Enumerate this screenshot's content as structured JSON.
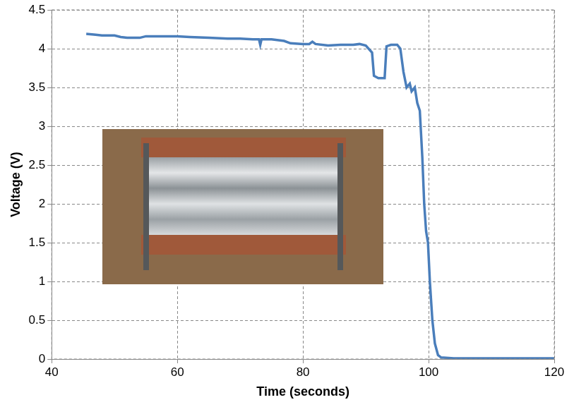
{
  "chart_data": {
    "type": "line",
    "x_label": "Time (seconds)",
    "y_label": "Voltage (V)",
    "color": "#4a7ebb",
    "grid": true,
    "xlim": [
      40,
      120
    ],
    "xticks": [
      40,
      60,
      80,
      100,
      120
    ],
    "ylim": [
      0,
      4.5
    ],
    "yticks": [
      0,
      0.5,
      1,
      1.5,
      2,
      2.5,
      3,
      3.5,
      4,
      4.5
    ],
    "x": [
      45.5,
      47,
      48,
      50,
      51,
      52,
      54,
      55,
      58,
      60,
      62,
      65,
      68,
      70,
      72,
      73,
      73.2,
      73.4,
      75,
      77,
      78,
      80,
      81,
      81.5,
      82,
      84,
      86,
      88,
      89,
      90,
      91,
      91.3,
      92,
      93,
      93.3,
      94,
      95,
      95.5,
      96,
      96.5,
      97,
      97.3,
      97.8,
      98.2,
      98.6,
      99,
      99.3,
      99.6,
      99.9,
      100.2,
      100.6,
      101,
      101.5,
      102,
      104,
      110,
      115,
      120
    ],
    "values": [
      4.19,
      4.18,
      4.17,
      4.17,
      4.15,
      4.14,
      4.14,
      4.16,
      4.16,
      4.16,
      4.15,
      4.14,
      4.13,
      4.13,
      4.12,
      4.12,
      4.05,
      4.12,
      4.12,
      4.1,
      4.07,
      4.06,
      4.06,
      4.09,
      4.06,
      4.04,
      4.05,
      4.05,
      4.06,
      4.04,
      3.95,
      3.65,
      3.62,
      3.62,
      4.03,
      4.05,
      4.05,
      4.0,
      3.7,
      3.5,
      3.55,
      3.45,
      3.5,
      3.3,
      3.2,
      2.6,
      2.0,
      1.65,
      1.5,
      1.0,
      0.5,
      0.2,
      0.05,
      0.02,
      0.01,
      0.01,
      0.01,
      0.01
    ]
  }
}
